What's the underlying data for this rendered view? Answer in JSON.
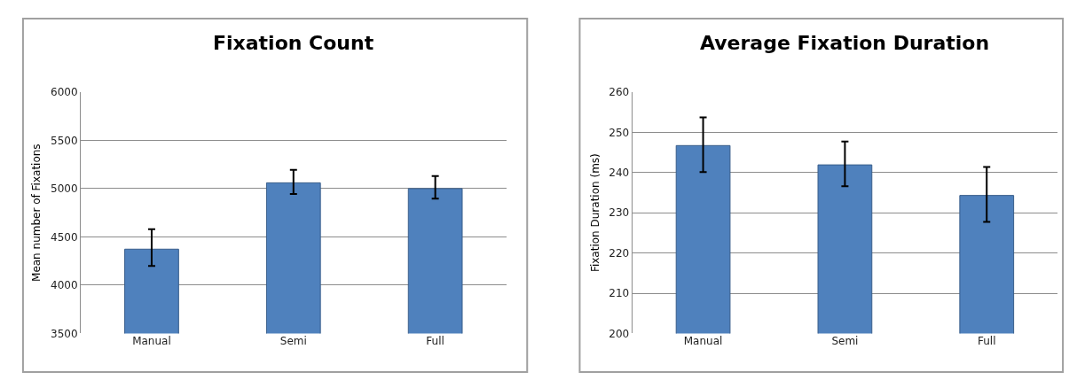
{
  "chart_data": [
    {
      "type": "bar",
      "title": "Fixation Count",
      "ylabel": "Mean number of Fixations",
      "categories": [
        "Manual",
        "Semi",
        "Full"
      ],
      "values": [
        4373,
        5060,
        5000
      ],
      "errors": [
        [
          4200,
          4580
        ],
        [
          4945,
          5195
        ],
        [
          4895,
          5130
        ]
      ],
      "color": "#4f81bd",
      "ylim": [
        3500,
        6000
      ],
      "yticks": [
        3500,
        4000,
        4500,
        5000,
        5500,
        6000
      ],
      "grid": "y"
    },
    {
      "type": "bar",
      "title": "Average Fixation Duration",
      "ylabel": "Fixation Duration (ms)",
      "categories": [
        "Manual",
        "Semi",
        "Full"
      ],
      "values": [
        246.7,
        241.9,
        234.3
      ],
      "errors": [
        [
          240.1,
          253.7
        ],
        [
          236.6,
          247.7
        ],
        [
          227.7,
          241.4
        ]
      ],
      "color": "#4f81bd",
      "ylim": [
        200,
        260
      ],
      "yticks": [
        200,
        210,
        220,
        230,
        240,
        250,
        260
      ],
      "grid": "y"
    }
  ]
}
